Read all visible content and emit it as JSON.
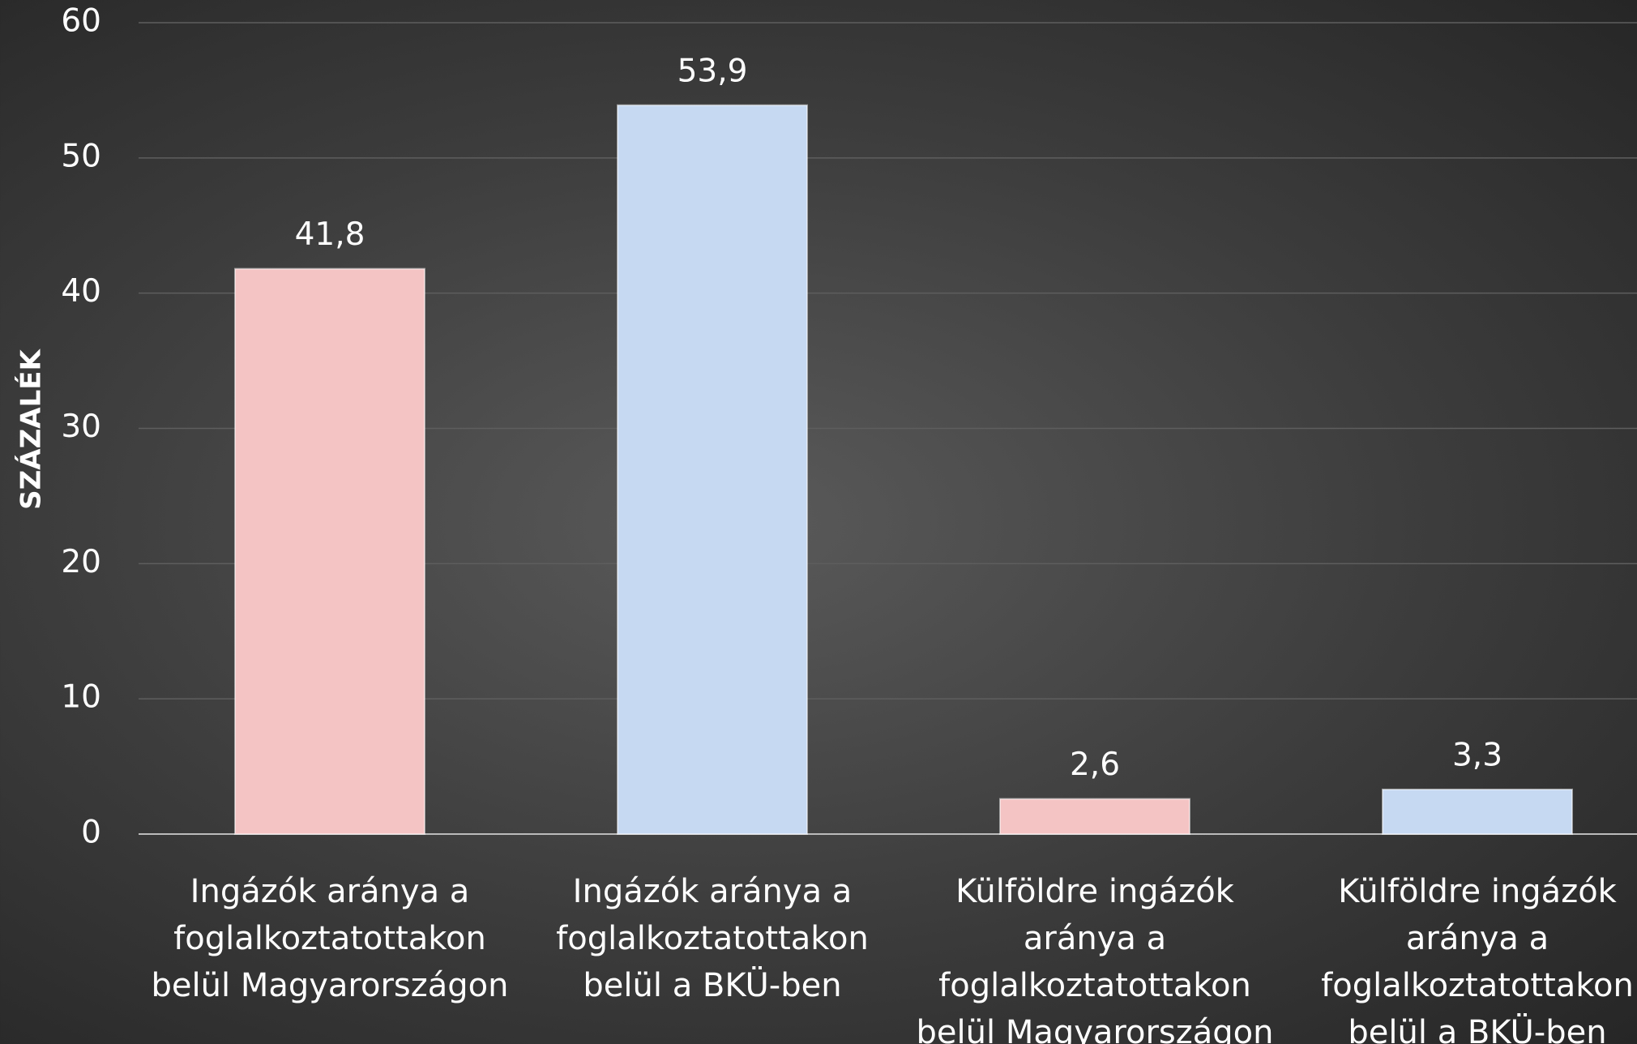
{
  "chart_data": {
    "type": "bar",
    "y_label": "SZÁZALÉK",
    "categories": [
      "Ingázók aránya a foglalkoztatottakon belül Magyarországon",
      "Ingázók aránya a foglalkoztatottakon belül a BKÜ-ben",
      "Külföldre ingázók aránya a foglalkoztatottakon belül Magyarországon",
      "Külföldre ingázók aránya a foglalkoztatottakon belül a BKÜ-ben"
    ],
    "values": [
      41.8,
      53.9,
      2.6,
      3.3
    ],
    "value_labels": [
      "41,8",
      "53,9",
      "2,6",
      "3,3"
    ],
    "colors": [
      "#f4c4c4",
      "#c6d9f2",
      "#f4c4c4",
      "#c6d9f2"
    ],
    "ylim": [
      0,
      60
    ],
    "yticks": [
      0,
      10,
      20,
      30,
      40,
      50,
      60
    ],
    "grid": true
  }
}
